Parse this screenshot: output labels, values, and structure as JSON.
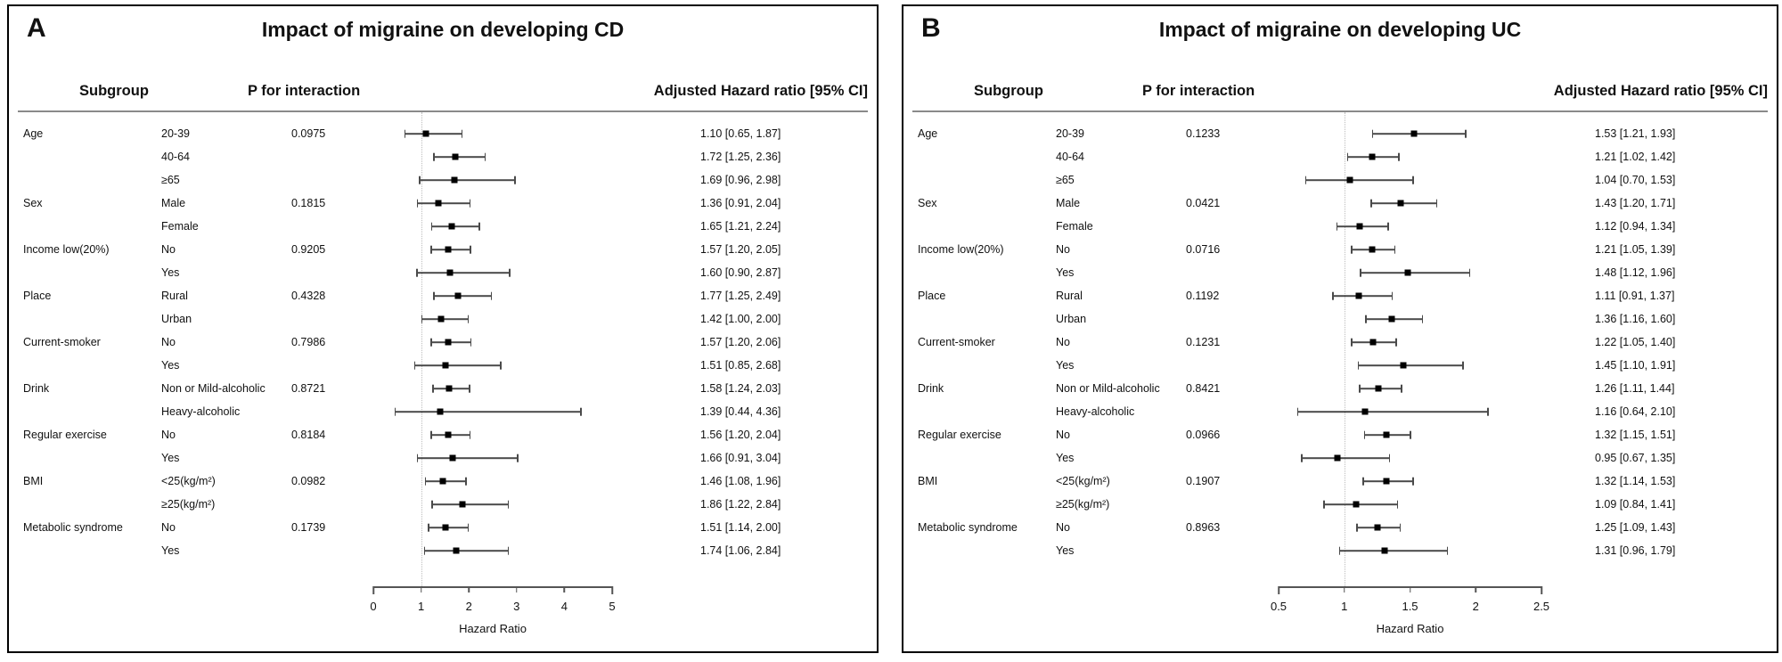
{
  "colors": {
    "background": "#ffffff",
    "panel_border": "#000000",
    "point_marker": "#000000",
    "ci_bar": "#4a4a4a",
    "reference_line": "#bdbdbd",
    "header_rule": "#8a8a8a"
  },
  "chart_data": [
    {
      "type": "scatter",
      "variant": "forest-plot",
      "panel_label": "A",
      "title": "Impact of migraine on developing CD",
      "col_headers": {
        "subgroup": "Subgroup",
        "p_interaction": "P for interaction",
        "hazard": "Adjusted Hazard ratio [95% CI]"
      },
      "xlabel": "Hazard Ratio",
      "xlim": [
        0,
        5
      ],
      "xticks": [
        0,
        1,
        2,
        3,
        4,
        5
      ],
      "xtick_labels": [
        "0",
        "1",
        "2",
        "3",
        "4",
        "5"
      ],
      "ref_line": 1,
      "rows": [
        {
          "subgroup": "Age",
          "level": "20-39",
          "p_interaction": "0.0975",
          "hr": 1.1,
          "ci_low": 0.65,
          "ci_high": 1.87,
          "ci_text": "1.10 [0.65, 1.87]"
        },
        {
          "subgroup": "",
          "level": "40-64",
          "p_interaction": "",
          "hr": 1.72,
          "ci_low": 1.25,
          "ci_high": 2.36,
          "ci_text": "1.72 [1.25, 2.36]"
        },
        {
          "subgroup": "",
          "level": "≥65",
          "p_interaction": "",
          "hr": 1.69,
          "ci_low": 0.96,
          "ci_high": 2.98,
          "ci_text": "1.69 [0.96, 2.98]"
        },
        {
          "subgroup": "Sex",
          "level": "Male",
          "p_interaction": "0.1815",
          "hr": 1.36,
          "ci_low": 0.91,
          "ci_high": 2.04,
          "ci_text": "1.36 [0.91, 2.04]"
        },
        {
          "subgroup": "",
          "level": "Female",
          "p_interaction": "",
          "hr": 1.65,
          "ci_low": 1.21,
          "ci_high": 2.24,
          "ci_text": "1.65 [1.21, 2.24]"
        },
        {
          "subgroup": "Income low(20%)",
          "level": "No",
          "p_interaction": "0.9205",
          "hr": 1.57,
          "ci_low": 1.2,
          "ci_high": 2.05,
          "ci_text": "1.57 [1.20, 2.05]"
        },
        {
          "subgroup": "",
          "level": "Yes",
          "p_interaction": "",
          "hr": 1.6,
          "ci_low": 0.9,
          "ci_high": 2.87,
          "ci_text": "1.60 [0.90, 2.87]"
        },
        {
          "subgroup": "Place",
          "level": "Rural",
          "p_interaction": "0.4328",
          "hr": 1.77,
          "ci_low": 1.25,
          "ci_high": 2.49,
          "ci_text": "1.77 [1.25, 2.49]"
        },
        {
          "subgroup": "",
          "level": "Urban",
          "p_interaction": "",
          "hr": 1.42,
          "ci_low": 1.0,
          "ci_high": 2.0,
          "ci_text": "1.42 [1.00, 2.00]"
        },
        {
          "subgroup": "Current-smoker",
          "level": "No",
          "p_interaction": "0.7986",
          "hr": 1.57,
          "ci_low": 1.2,
          "ci_high": 2.06,
          "ci_text": "1.57 [1.20, 2.06]"
        },
        {
          "subgroup": "",
          "level": "Yes",
          "p_interaction": "",
          "hr": 1.51,
          "ci_low": 0.85,
          "ci_high": 2.68,
          "ci_text": "1.51 [0.85, 2.68]"
        },
        {
          "subgroup": "Drink",
          "level": "Non or Mild-alcoholic",
          "p_interaction": "0.8721",
          "hr": 1.58,
          "ci_low": 1.24,
          "ci_high": 2.03,
          "ci_text": "1.58 [1.24, 2.03]"
        },
        {
          "subgroup": "",
          "level": "Heavy-alcoholic",
          "p_interaction": "",
          "hr": 1.39,
          "ci_low": 0.44,
          "ci_high": 4.36,
          "ci_text": "1.39 [0.44, 4.36]"
        },
        {
          "subgroup": "Regular exercise",
          "level": "No",
          "p_interaction": "0.8184",
          "hr": 1.56,
          "ci_low": 1.2,
          "ci_high": 2.04,
          "ci_text": "1.56 [1.20, 2.04]"
        },
        {
          "subgroup": "",
          "level": "Yes",
          "p_interaction": "",
          "hr": 1.66,
          "ci_low": 0.91,
          "ci_high": 3.04,
          "ci_text": "1.66 [0.91, 3.04]"
        },
        {
          "subgroup": "BMI",
          "level": "<25(kg/m²)",
          "p_interaction": "0.0982",
          "hr": 1.46,
          "ci_low": 1.08,
          "ci_high": 1.96,
          "ci_text": "1.46 [1.08, 1.96]"
        },
        {
          "subgroup": "",
          "level": "≥25(kg/m²)",
          "p_interaction": "",
          "hr": 1.86,
          "ci_low": 1.22,
          "ci_high": 2.84,
          "ci_text": "1.86 [1.22, 2.84]"
        },
        {
          "subgroup": "Metabolic syndrome",
          "level": "No",
          "p_interaction": "0.1739",
          "hr": 1.51,
          "ci_low": 1.14,
          "ci_high": 2.0,
          "ci_text": "1.51 [1.14, 2.00]"
        },
        {
          "subgroup": "",
          "level": "Yes",
          "p_interaction": "",
          "hr": 1.74,
          "ci_low": 1.06,
          "ci_high": 2.84,
          "ci_text": "1.74 [1.06, 2.84]"
        }
      ]
    },
    {
      "type": "scatter",
      "variant": "forest-plot",
      "panel_label": "B",
      "title": "Impact of migraine on developing UC",
      "col_headers": {
        "subgroup": "Subgroup",
        "p_interaction": "P for interaction",
        "hazard": "Adjusted Hazard ratio [95% CI]"
      },
      "xlabel": "Hazard Ratio",
      "xlim": [
        0.5,
        2.5
      ],
      "xticks": [
        0.5,
        1,
        1.5,
        2,
        2.5
      ],
      "xtick_labels": [
        "0.5",
        "1",
        "1.5",
        "2",
        "2.5"
      ],
      "ref_line": 1,
      "rows": [
        {
          "subgroup": "Age",
          "level": "20-39",
          "p_interaction": "0.1233",
          "hr": 1.53,
          "ci_low": 1.21,
          "ci_high": 1.93,
          "ci_text": "1.53 [1.21, 1.93]"
        },
        {
          "subgroup": "",
          "level": "40-64",
          "p_interaction": "",
          "hr": 1.21,
          "ci_low": 1.02,
          "ci_high": 1.42,
          "ci_text": "1.21 [1.02, 1.42]"
        },
        {
          "subgroup": "",
          "level": "≥65",
          "p_interaction": "",
          "hr": 1.04,
          "ci_low": 0.7,
          "ci_high": 1.53,
          "ci_text": "1.04 [0.70, 1.53]"
        },
        {
          "subgroup": "Sex",
          "level": "Male",
          "p_interaction": "0.0421",
          "hr": 1.43,
          "ci_low": 1.2,
          "ci_high": 1.71,
          "ci_text": "1.43 [1.20, 1.71]"
        },
        {
          "subgroup": "",
          "level": "Female",
          "p_interaction": "",
          "hr": 1.12,
          "ci_low": 0.94,
          "ci_high": 1.34,
          "ci_text": "1.12 [0.94, 1.34]"
        },
        {
          "subgroup": "Income low(20%)",
          "level": "No",
          "p_interaction": "0.0716",
          "hr": 1.21,
          "ci_low": 1.05,
          "ci_high": 1.39,
          "ci_text": "1.21 [1.05, 1.39]"
        },
        {
          "subgroup": "",
          "level": "Yes",
          "p_interaction": "",
          "hr": 1.48,
          "ci_low": 1.12,
          "ci_high": 1.96,
          "ci_text": "1.48 [1.12, 1.96]"
        },
        {
          "subgroup": "Place",
          "level": "Rural",
          "p_interaction": "0.1192",
          "hr": 1.11,
          "ci_low": 0.91,
          "ci_high": 1.37,
          "ci_text": "1.11 [0.91, 1.37]"
        },
        {
          "subgroup": "",
          "level": "Urban",
          "p_interaction": "",
          "hr": 1.36,
          "ci_low": 1.16,
          "ci_high": 1.6,
          "ci_text": "1.36 [1.16, 1.60]"
        },
        {
          "subgroup": "Current-smoker",
          "level": "No",
          "p_interaction": "0.1231",
          "hr": 1.22,
          "ci_low": 1.05,
          "ci_high": 1.4,
          "ci_text": "1.22 [1.05, 1.40]"
        },
        {
          "subgroup": "",
          "level": "Yes",
          "p_interaction": "",
          "hr": 1.45,
          "ci_low": 1.1,
          "ci_high": 1.91,
          "ci_text": "1.45 [1.10, 1.91]"
        },
        {
          "subgroup": "Drink",
          "level": "Non or Mild-alcoholic",
          "p_interaction": "0.8421",
          "hr": 1.26,
          "ci_low": 1.11,
          "ci_high": 1.44,
          "ci_text": "1.26 [1.11, 1.44]"
        },
        {
          "subgroup": "",
          "level": "Heavy-alcoholic",
          "p_interaction": "",
          "hr": 1.16,
          "ci_low": 0.64,
          "ci_high": 2.1,
          "ci_text": "1.16 [0.64, 2.10]"
        },
        {
          "subgroup": "Regular exercise",
          "level": "No",
          "p_interaction": "0.0966",
          "hr": 1.32,
          "ci_low": 1.15,
          "ci_high": 1.51,
          "ci_text": "1.32 [1.15, 1.51]"
        },
        {
          "subgroup": "",
          "level": "Yes",
          "p_interaction": "",
          "hr": 0.95,
          "ci_low": 0.67,
          "ci_high": 1.35,
          "ci_text": "0.95 [0.67, 1.35]"
        },
        {
          "subgroup": "BMI",
          "level": "<25(kg/m²)",
          "p_interaction": "0.1907",
          "hr": 1.32,
          "ci_low": 1.14,
          "ci_high": 1.53,
          "ci_text": "1.32 [1.14, 1.53]"
        },
        {
          "subgroup": "",
          "level": "≥25(kg/m²)",
          "p_interaction": "",
          "hr": 1.09,
          "ci_low": 0.84,
          "ci_high": 1.41,
          "ci_text": "1.09 [0.84, 1.41]"
        },
        {
          "subgroup": "Metabolic syndrome",
          "level": "No",
          "p_interaction": "0.8963",
          "hr": 1.25,
          "ci_low": 1.09,
          "ci_high": 1.43,
          "ci_text": "1.25 [1.09, 1.43]"
        },
        {
          "subgroup": "",
          "level": "Yes",
          "p_interaction": "",
          "hr": 1.31,
          "ci_low": 0.96,
          "ci_high": 1.79,
          "ci_text": "1.31 [0.96, 1.79]"
        }
      ]
    }
  ]
}
